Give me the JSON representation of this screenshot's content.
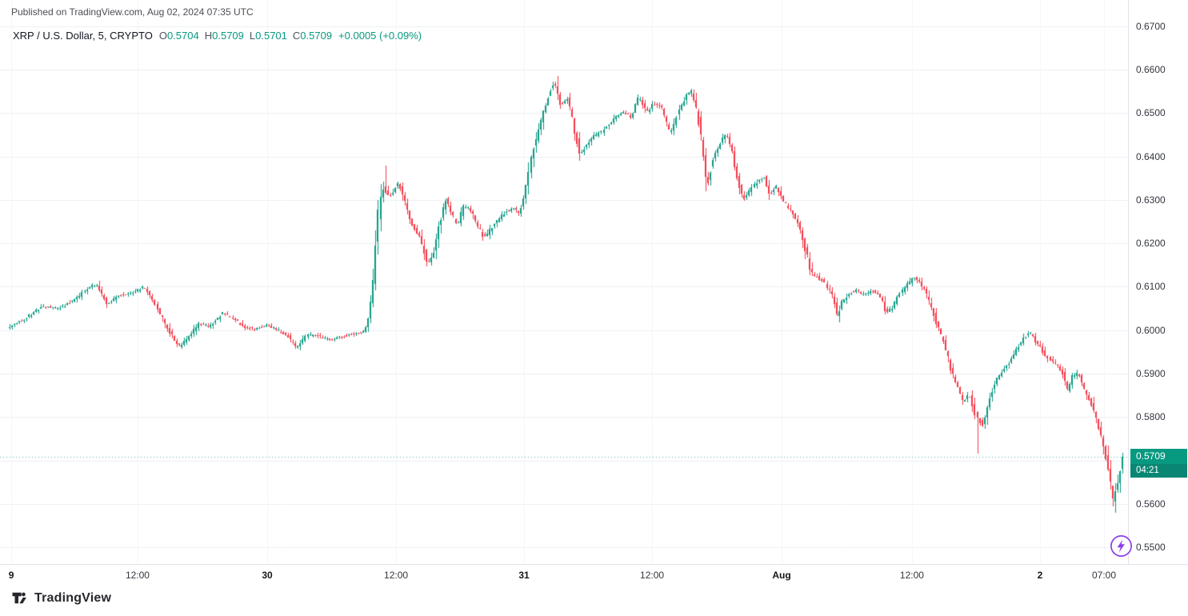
{
  "header": {
    "published": "Published on TradingView.com, Aug 02, 2024 07:35 UTC"
  },
  "legend": {
    "title": "XRP / U.S. Dollar, 5, CRYPTO",
    "ohlc": [
      {
        "label": "O",
        "value": "0.5704"
      },
      {
        "label": "H",
        "value": "0.5709"
      },
      {
        "label": "L",
        "value": "0.5701"
      },
      {
        "label": "C",
        "value": "0.5709"
      }
    ],
    "change": "+0.0005 (+0.09%)"
  },
  "price_scale": {
    "current_price": "0.5709",
    "countdown": "04:21"
  },
  "footer": {
    "brand": "TradingView"
  },
  "chart_data": {
    "type": "candlestick",
    "symbol": "XRP / U.S. Dollar",
    "interval": "5",
    "exchange": "CRYPTO",
    "current_bar": {
      "open": 0.5704,
      "high": 0.5709,
      "low": 0.5701,
      "close": 0.5709,
      "change": "+0.0005",
      "change_pct": "+0.09%"
    },
    "price_line": 0.5709,
    "ylim": [
      0.54613,
      0.67608
    ],
    "y_ticks": [
      0.55,
      0.56,
      0.57,
      0.58,
      0.59,
      0.6,
      0.61,
      0.62,
      0.63,
      0.64,
      0.65,
      0.66,
      0.67
    ],
    "x_ticks": [
      {
        "label": "9",
        "f": 0.0029,
        "major": true
      },
      {
        "label": "12:00",
        "f": 0.1161,
        "major": false
      },
      {
        "label": "30",
        "f": 0.2323,
        "major": true
      },
      {
        "label": "12:00",
        "f": 0.3477,
        "major": false
      },
      {
        "label": "31",
        "f": 0.4624,
        "major": true
      },
      {
        "label": "12:00",
        "f": 0.5771,
        "major": false
      },
      {
        "label": "Aug",
        "f": 0.6932,
        "major": true
      },
      {
        "label": "12:00",
        "f": 0.81,
        "major": false
      },
      {
        "label": "2",
        "f": 0.9247,
        "major": true
      },
      {
        "label": "07:00",
        "f": 0.9821,
        "major": false
      }
    ],
    "candle_count": 460,
    "colors": {
      "up": "#089981",
      "down": "#f23645",
      "grid_h": "#edeff4",
      "grid_v": "#f4f6f9",
      "price_line": "rgba(8,153,129,0.75)"
    },
    "extra_wicks": [
      {
        "f": 0.3362,
        "price": 0.638
      },
      {
        "f": 0.4903,
        "price": 0.6585
      },
      {
        "f": 0.8681,
        "price": 0.5715
      },
      {
        "f": 0.9914,
        "price": 0.558
      }
    ],
    "price_path": [
      [
        0.0,
        0.6005
      ],
      [
        0.0143,
        0.6025
      ],
      [
        0.0323,
        0.6055
      ],
      [
        0.0466,
        0.605
      ],
      [
        0.0609,
        0.607
      ],
      [
        0.0731,
        0.61
      ],
      [
        0.0803,
        0.6105
      ],
      [
        0.0896,
        0.606
      ],
      [
        0.1004,
        0.608
      ],
      [
        0.1111,
        0.6085
      ],
      [
        0.1233,
        0.61
      ],
      [
        0.1326,
        0.606
      ],
      [
        0.1434,
        0.6005
      ],
      [
        0.1541,
        0.5962
      ],
      [
        0.1613,
        0.5978
      ],
      [
        0.172,
        0.6015
      ],
      [
        0.1814,
        0.6008
      ],
      [
        0.1935,
        0.604
      ],
      [
        0.2022,
        0.6028
      ],
      [
        0.2115,
        0.6008
      ],
      [
        0.2222,
        0.6002
      ],
      [
        0.2337,
        0.6012
      ],
      [
        0.2437,
        0.5998
      ],
      [
        0.2523,
        0.5985
      ],
      [
        0.2595,
        0.596
      ],
      [
        0.2688,
        0.599
      ],
      [
        0.2796,
        0.5985
      ],
      [
        0.2903,
        0.5978
      ],
      [
        0.3011,
        0.5985
      ],
      [
        0.3125,
        0.5992
      ],
      [
        0.3211,
        0.5998
      ],
      [
        0.3254,
        0.604
      ],
      [
        0.329,
        0.614
      ],
      [
        0.3326,
        0.626
      ],
      [
        0.3362,
        0.633
      ],
      [
        0.3427,
        0.6305
      ],
      [
        0.3505,
        0.634
      ],
      [
        0.3563,
        0.6295
      ],
      [
        0.3627,
        0.6245
      ],
      [
        0.3699,
        0.6215
      ],
      [
        0.3771,
        0.615
      ],
      [
        0.3828,
        0.6185
      ],
      [
        0.3885,
        0.6255
      ],
      [
        0.3935,
        0.63
      ],
      [
        0.3986,
        0.6268
      ],
      [
        0.4036,
        0.6242
      ],
      [
        0.4093,
        0.6288
      ],
      [
        0.4151,
        0.6278
      ],
      [
        0.4215,
        0.6242
      ],
      [
        0.4272,
        0.6212
      ],
      [
        0.433,
        0.6232
      ],
      [
        0.4394,
        0.6252
      ],
      [
        0.4466,
        0.6272
      ],
      [
        0.4538,
        0.6282
      ],
      [
        0.4595,
        0.627
      ],
      [
        0.4645,
        0.632
      ],
      [
        0.4703,
        0.6405
      ],
      [
        0.4753,
        0.6455
      ],
      [
        0.481,
        0.6505
      ],
      [
        0.4868,
        0.6555
      ],
      [
        0.4903,
        0.6575
      ],
      [
        0.4954,
        0.652
      ],
      [
        0.5025,
        0.6532
      ],
      [
        0.5083,
        0.6465
      ],
      [
        0.5133,
        0.6405
      ],
      [
        0.519,
        0.6425
      ],
      [
        0.5255,
        0.6445
      ],
      [
        0.5312,
        0.6455
      ],
      [
        0.5384,
        0.6472
      ],
      [
        0.5456,
        0.6492
      ],
      [
        0.5527,
        0.6502
      ],
      [
        0.5599,
        0.649
      ],
      [
        0.5663,
        0.654
      ],
      [
        0.5728,
        0.6502
      ],
      [
        0.58,
        0.6522
      ],
      [
        0.5871,
        0.6512
      ],
      [
        0.5943,
        0.6452
      ],
      [
        0.6014,
        0.6502
      ],
      [
        0.6086,
        0.654
      ],
      [
        0.6136,
        0.6552
      ],
      [
        0.6186,
        0.65
      ],
      [
        0.6229,
        0.642
      ],
      [
        0.6272,
        0.633
      ],
      [
        0.633,
        0.64
      ],
      [
        0.6387,
        0.6432
      ],
      [
        0.6444,
        0.6452
      ],
      [
        0.6495,
        0.642
      ],
      [
        0.6545,
        0.635
      ],
      [
        0.6602,
        0.6302
      ],
      [
        0.6659,
        0.6322
      ],
      [
        0.6717,
        0.6342
      ],
      [
        0.6781,
        0.6352
      ],
      [
        0.6832,
        0.6312
      ],
      [
        0.6889,
        0.6332
      ],
      [
        0.6946,
        0.6302
      ],
      [
        0.7004,
        0.6282
      ],
      [
        0.7061,
        0.6262
      ],
      [
        0.7104,
        0.624
      ],
      [
        0.7161,
        0.618
      ],
      [
        0.7211,
        0.613
      ],
      [
        0.7262,
        0.6122
      ],
      [
        0.7319,
        0.6112
      ],
      [
        0.7391,
        0.6082
      ],
      [
        0.7434,
        0.6032
      ],
      [
        0.7477,
        0.6062
      ],
      [
        0.7534,
        0.6082
      ],
      [
        0.7606,
        0.6092
      ],
      [
        0.7677,
        0.6082
      ],
      [
        0.7749,
        0.6092
      ],
      [
        0.7821,
        0.6082
      ],
      [
        0.7878,
        0.6042
      ],
      [
        0.7935,
        0.6052
      ],
      [
        0.7993,
        0.6082
      ],
      [
        0.805,
        0.6102
      ],
      [
        0.8122,
        0.6122
      ],
      [
        0.818,
        0.6112
      ],
      [
        0.8237,
        0.6082
      ],
      [
        0.8294,
        0.6042
      ],
      [
        0.8352,
        0.6002
      ],
      [
        0.8409,
        0.5962
      ],
      [
        0.8466,
        0.5902
      ],
      [
        0.8524,
        0.5862
      ],
      [
        0.8574,
        0.5832
      ],
      [
        0.8624,
        0.5852
      ],
      [
        0.8681,
        0.5802
      ],
      [
        0.8739,
        0.5782
      ],
      [
        0.8796,
        0.5842
      ],
      [
        0.8853,
        0.5882
      ],
      [
        0.8911,
        0.5902
      ],
      [
        0.8968,
        0.5922
      ],
      [
        0.9039,
        0.5952
      ],
      [
        0.9111,
        0.5982
      ],
      [
        0.9168,
        0.5995
      ],
      [
        0.9226,
        0.5972
      ],
      [
        0.9283,
        0.5952
      ],
      [
        0.934,
        0.5932
      ],
      [
        0.9398,
        0.5922
      ],
      [
        0.9455,
        0.5902
      ],
      [
        0.9498,
        0.5862
      ],
      [
        0.9541,
        0.5892
      ],
      [
        0.9598,
        0.5902
      ],
      [
        0.9656,
        0.5862
      ],
      [
        0.9713,
        0.5832
      ],
      [
        0.977,
        0.5792
      ],
      [
        0.9828,
        0.5732
      ],
      [
        0.9871,
        0.568
      ],
      [
        0.9914,
        0.5602
      ],
      [
        0.9957,
        0.5652
      ],
      [
        1.0,
        0.5709
      ]
    ]
  }
}
